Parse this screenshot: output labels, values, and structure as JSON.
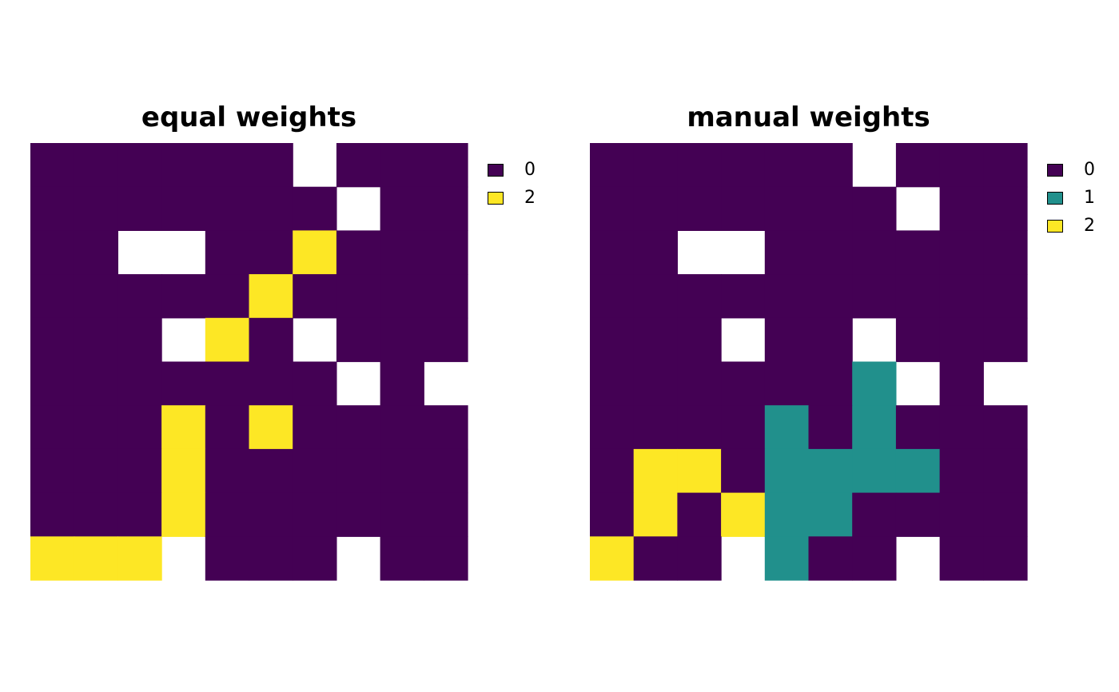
{
  "colors": {
    "0": "#440154",
    "1": "#21908c",
    "2": "#fde725"
  },
  "chart_data": [
    {
      "type": "heatmap",
      "title": "equal weights",
      "legend": [
        {
          "label": "0",
          "color": "#440154"
        },
        {
          "label": "2",
          "color": "#fde725"
        }
      ],
      "legend_position": "right",
      "rows": 10,
      "cols": 10,
      "grid": [
        [
          0,
          0,
          0,
          0,
          0,
          0,
          null,
          0,
          0,
          0
        ],
        [
          0,
          0,
          0,
          0,
          0,
          0,
          0,
          null,
          0,
          0
        ],
        [
          0,
          0,
          null,
          null,
          0,
          0,
          2,
          0,
          0,
          0
        ],
        [
          0,
          0,
          0,
          0,
          0,
          2,
          0,
          0,
          0,
          0
        ],
        [
          0,
          0,
          0,
          null,
          2,
          0,
          null,
          0,
          0,
          0
        ],
        [
          0,
          0,
          0,
          0,
          0,
          0,
          0,
          null,
          0,
          null
        ],
        [
          0,
          0,
          0,
          2,
          0,
          2,
          0,
          0,
          0,
          0
        ],
        [
          0,
          0,
          0,
          2,
          0,
          0,
          0,
          0,
          0,
          0
        ],
        [
          0,
          0,
          0,
          2,
          0,
          0,
          0,
          0,
          0,
          0
        ],
        [
          2,
          2,
          2,
          null,
          0,
          0,
          0,
          null,
          0,
          0
        ]
      ]
    },
    {
      "type": "heatmap",
      "title": "manual weights",
      "legend": [
        {
          "label": "0",
          "color": "#440154"
        },
        {
          "label": "1",
          "color": "#21908c"
        },
        {
          "label": "2",
          "color": "#fde725"
        }
      ],
      "legend_position": "right",
      "rows": 10,
      "cols": 10,
      "grid": [
        [
          0,
          0,
          0,
          0,
          0,
          0,
          null,
          0,
          0,
          0
        ],
        [
          0,
          0,
          0,
          0,
          0,
          0,
          0,
          null,
          0,
          0
        ],
        [
          0,
          0,
          null,
          null,
          0,
          0,
          0,
          0,
          0,
          0
        ],
        [
          0,
          0,
          0,
          0,
          0,
          0,
          0,
          0,
          0,
          0
        ],
        [
          0,
          0,
          0,
          null,
          0,
          0,
          null,
          0,
          0,
          0
        ],
        [
          0,
          0,
          0,
          0,
          0,
          0,
          1,
          null,
          0,
          null
        ],
        [
          0,
          0,
          0,
          0,
          1,
          0,
          1,
          0,
          0,
          0
        ],
        [
          0,
          2,
          2,
          0,
          1,
          1,
          1,
          1,
          0,
          0
        ],
        [
          0,
          2,
          0,
          2,
          1,
          1,
          0,
          0,
          0,
          0
        ],
        [
          2,
          0,
          0,
          null,
          1,
          0,
          0,
          null,
          0,
          0
        ]
      ]
    }
  ]
}
